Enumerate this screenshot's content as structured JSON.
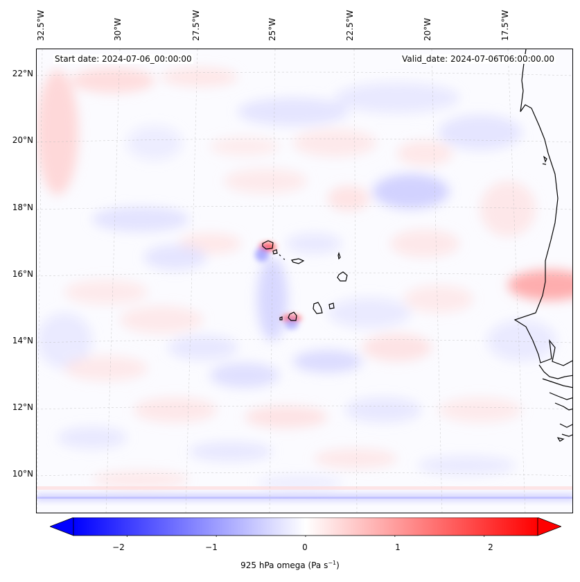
{
  "map": {
    "start_date_text": "Start date: 2024-07-06_00:00:00",
    "valid_date_text": "Valid_date: 2024-07-06T06:00:00.00",
    "lon_labels": [
      "32.5°W",
      "30°W",
      "27.5°W",
      "25°W",
      "22.5°W",
      "20°W",
      "17.5°W"
    ],
    "lat_labels": [
      "22°N",
      "20°N",
      "18°N",
      "16°N",
      "14°N",
      "12°N",
      "10°N"
    ],
    "extent": {
      "lon_min": -32.6,
      "lon_max": -15.8,
      "lat_min": 8.9,
      "lat_max": 22.8
    }
  },
  "colorbar": {
    "label_main": "925 hPa omega (Pa s",
    "label_exp": "−1",
    "label_close": ")",
    "ticks": [
      "−2",
      "−1",
      "0",
      "1",
      "2"
    ],
    "tick_values": [
      -2,
      -1,
      0,
      1,
      2
    ],
    "vmin": -2.6,
    "vmax": 2.6,
    "cmap": "bwr",
    "low_color": "#0000ff",
    "mid_color": "#ffffff",
    "high_color": "#ff0000"
  }
}
